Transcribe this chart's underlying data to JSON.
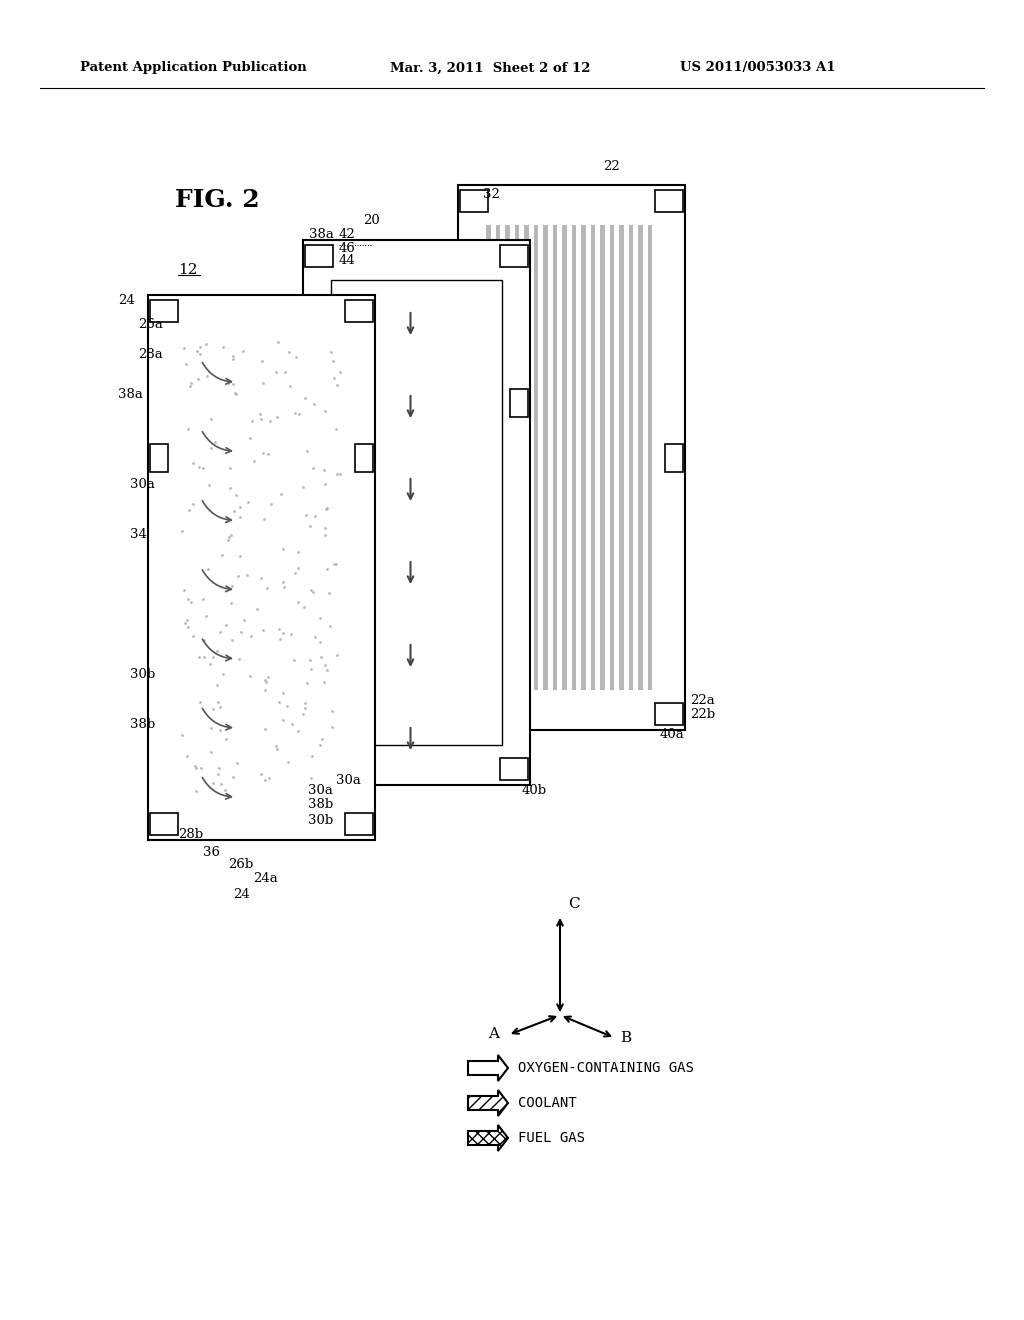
{
  "bg_color": "#ffffff",
  "header_left": "Patent Application Publication",
  "header_mid": "Mar. 3, 2011  Sheet 2 of 12",
  "header_right": "US 2011/0053033 A1",
  "fig_label": "FIG. 2",
  "ref_label": "12",
  "legend_items": [
    {
      "label": "OXYGEN-CONTAINING GAS",
      "style": "open"
    },
    {
      "label": "COOLANT",
      "style": "hatch_lines"
    },
    {
      "label": "FUEL GAS",
      "style": "hatch_cross"
    }
  ],
  "axes_labels": [
    "A",
    "B",
    "C"
  ]
}
